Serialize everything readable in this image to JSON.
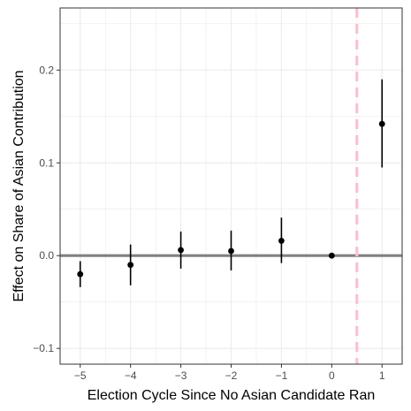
{
  "chart_data": {
    "type": "scatter",
    "xlabel": "Election Cycle  Since No Asian Candidate Ran",
    "ylabel": "Effect on Share of Asian Contribution",
    "xlim": [
      -5.4,
      1.4
    ],
    "ylim": [
      -0.117,
      0.267
    ],
    "x_ticks": [
      -5,
      -4,
      -3,
      -2,
      -1,
      0,
      1
    ],
    "x_tick_labels": [
      "−5",
      "−4",
      "−3",
      "−2",
      "−1",
      "0",
      "1"
    ],
    "y_ticks": [
      -0.1,
      0.0,
      0.1,
      0.2
    ],
    "y_tick_labels": [
      "−0.1",
      "0.0",
      "0.1",
      "0.2"
    ],
    "grid": true,
    "points": [
      {
        "x": -5,
        "y": -0.02,
        "lower": -0.034,
        "upper": -0.006
      },
      {
        "x": -4,
        "y": -0.01,
        "lower": -0.032,
        "upper": 0.012
      },
      {
        "x": -3,
        "y": 0.006,
        "lower": -0.014,
        "upper": 0.026
      },
      {
        "x": -2,
        "y": 0.005,
        "lower": -0.016,
        "upper": 0.027
      },
      {
        "x": -1,
        "y": 0.016,
        "lower": -0.008,
        "upper": 0.041
      },
      {
        "x": 0,
        "y": 0.0,
        "lower": 0.0,
        "upper": 0.0
      },
      {
        "x": 1,
        "y": 0.142,
        "lower": 0.095,
        "upper": 0.19
      }
    ],
    "hline": {
      "y": 0,
      "color": "#808080"
    },
    "vline": {
      "x": 0.5,
      "color": "#ffc0cb",
      "style": "dashed"
    },
    "colors": {
      "points": "#000000",
      "grid": "#ebebeb",
      "panel_border": "#333333"
    }
  }
}
